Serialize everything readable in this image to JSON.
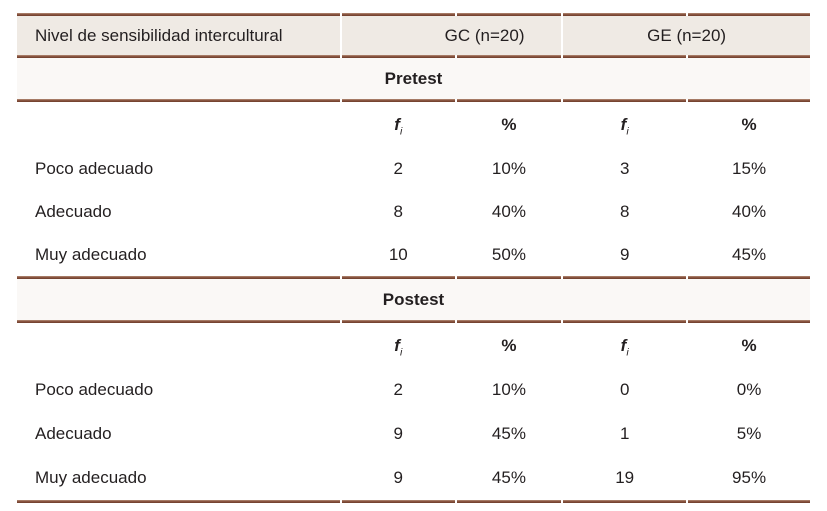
{
  "colors": {
    "header_bg": "#efeae4",
    "band_bg": "#faf8f6",
    "rule_dark": "#6d3c2b",
    "rule_light": "#b58f7a",
    "text": "#231f20"
  },
  "table": {
    "title_col": "Nivel de sensibilidad intercultural",
    "group_headers": [
      "GC (n=20)",
      "GE (n=20)"
    ],
    "fi_label": "f",
    "fi_sub": "i",
    "pct_label": "%",
    "sections": [
      {
        "label": "Pretest",
        "rows": [
          {
            "label": "Poco adecuado",
            "gc_f": "2",
            "gc_p": "10%",
            "ge_f": "3",
            "ge_p": "15%"
          },
          {
            "label": "Adecuado",
            "gc_f": "8",
            "gc_p": "40%",
            "ge_f": "8",
            "ge_p": "40%"
          },
          {
            "label": "Muy adecuado",
            "gc_f": "10",
            "gc_p": "50%",
            "ge_f": "9",
            "ge_p": "45%"
          }
        ]
      },
      {
        "label": "Postest",
        "rows": [
          {
            "label": "Poco adecuado",
            "gc_f": "2",
            "gc_p": "10%",
            "ge_f": "0",
            "ge_p": "0%"
          },
          {
            "label": "Adecuado",
            "gc_f": "9",
            "gc_p": "45%",
            "ge_f": "1",
            "ge_p": "5%"
          },
          {
            "label": "Muy adecuado",
            "gc_f": "9",
            "gc_p": "45%",
            "ge_f": "19",
            "ge_p": "95%"
          }
        ]
      }
    ]
  },
  "chart_data": {
    "type": "table",
    "title": "Nivel de sensibilidad intercultural",
    "columns": [
      "Nivel de sensibilidad intercultural",
      "GC (n=20) fi",
      "GC (n=20) %",
      "GE (n=20) fi",
      "GE (n=20) %"
    ],
    "sections": [
      {
        "name": "Pretest",
        "rows": [
          [
            "Poco adecuado",
            2,
            "10%",
            3,
            "15%"
          ],
          [
            "Adecuado",
            8,
            "40%",
            8,
            "40%"
          ],
          [
            "Muy adecuado",
            10,
            "50%",
            9,
            "45%"
          ]
        ]
      },
      {
        "name": "Postest",
        "rows": [
          [
            "Poco adecuado",
            2,
            "10%",
            0,
            "0%"
          ],
          [
            "Adecuado",
            9,
            "45%",
            1,
            "5%"
          ],
          [
            "Muy adecuado",
            9,
            "45%",
            19,
            "95%"
          ]
        ]
      }
    ],
    "legend_position": "none",
    "grid": "horizontal-rules-only"
  }
}
